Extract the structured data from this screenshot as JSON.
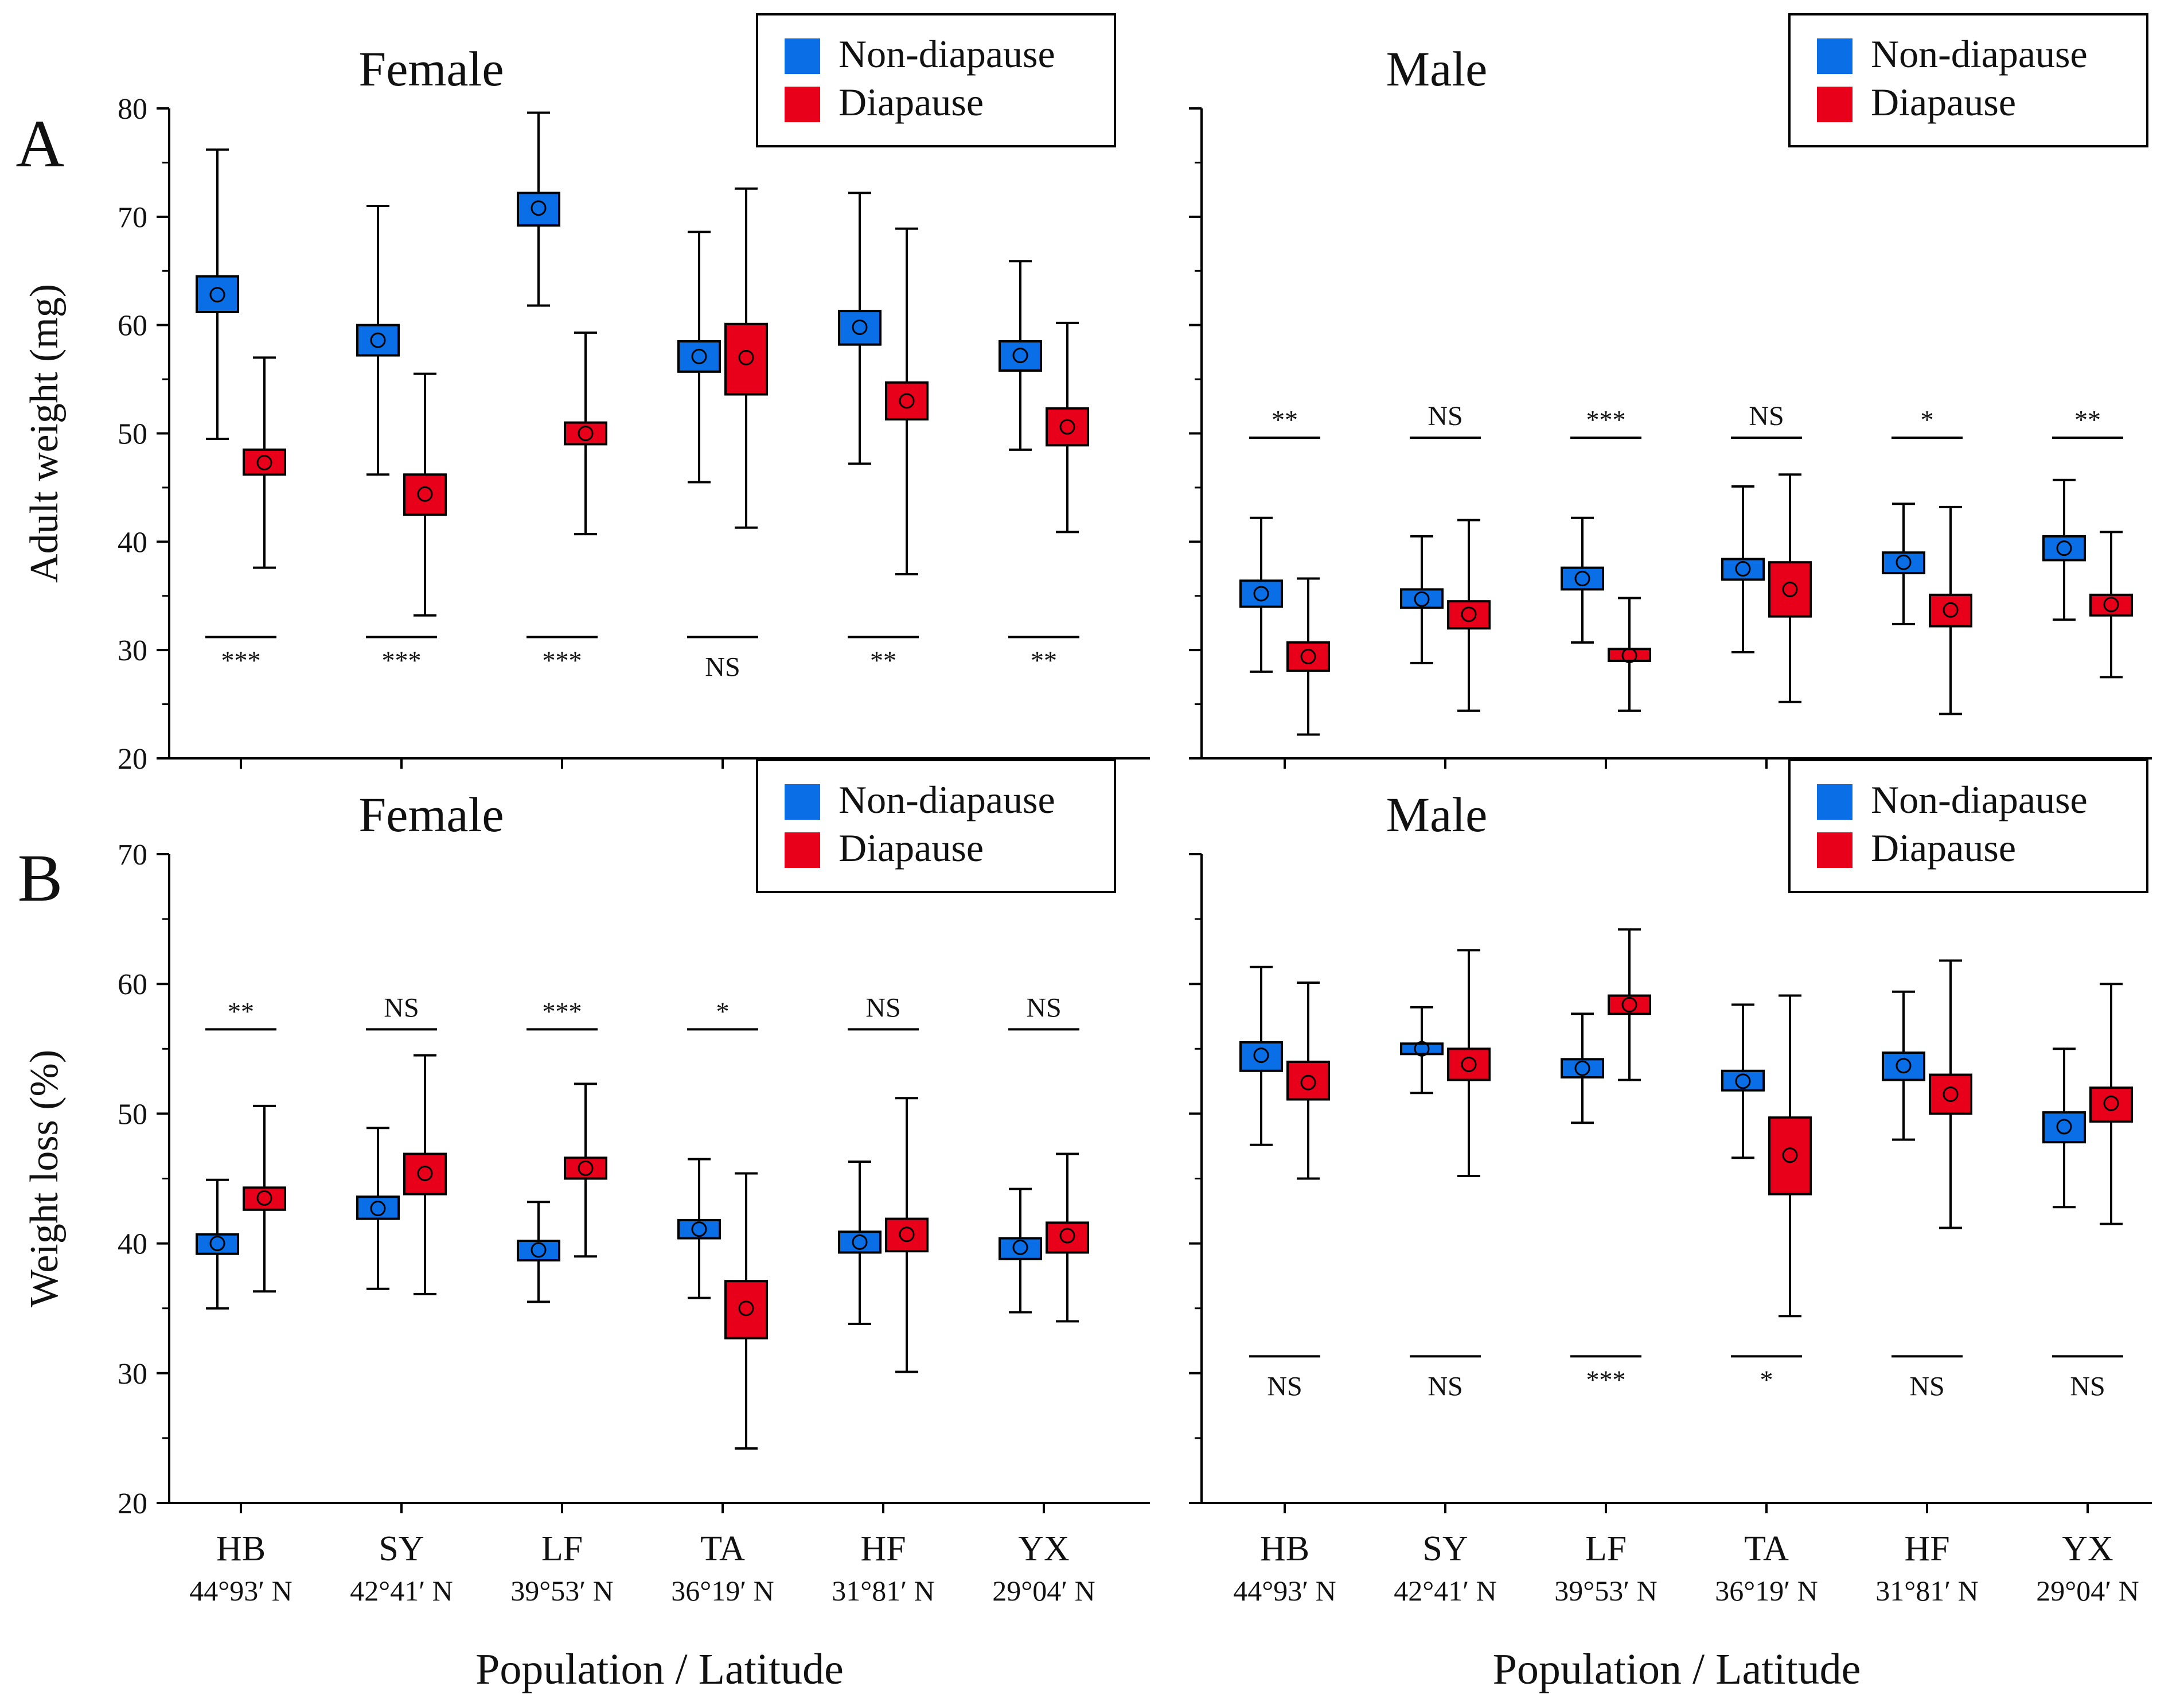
{
  "figure": {
    "panel_labels": [
      "A",
      "B"
    ],
    "xlabel": "Population / Latitude",
    "populations": [
      {
        "code": "HB",
        "lat": "44°93′ N"
      },
      {
        "code": "SY",
        "lat": "42°41′ N"
      },
      {
        "code": "LF",
        "lat": "39°53′ N"
      },
      {
        "code": "TA",
        "lat": "36°19′ N"
      },
      {
        "code": "HF",
        "lat": "31°81′ N"
      },
      {
        "code": "YX",
        "lat": "29°04′ N"
      }
    ],
    "legend": [
      {
        "name": "Non-diapause",
        "color": "#0a6ee6"
      },
      {
        "name": "Diapause",
        "color": "#e8001b"
      }
    ],
    "rows": [
      {
        "ylabel": "Adult weight (mg)",
        "ylim": [
          20,
          80
        ],
        "yticks": [
          20,
          30,
          40,
          50,
          60,
          70,
          80
        ]
      },
      {
        "ylabel": "Weight loss (%)",
        "ylim": [
          20,
          70
        ],
        "yticks": [
          20,
          30,
          40,
          50,
          60,
          70
        ]
      }
    ]
  },
  "chart_data": [
    {
      "type": "box",
      "panel": "A",
      "title": "Female",
      "ylabel": "Adult weight (mg)",
      "ylim": [
        20,
        80
      ],
      "categories": [
        "HB",
        "SY",
        "LF",
        "TA",
        "HF",
        "YX"
      ],
      "sig_position": "below",
      "sig_y": 31.2,
      "significance": [
        "***",
        "***",
        "***",
        "NS",
        "**",
        "**"
      ],
      "series": [
        {
          "name": "Non-diapause",
          "mean": [
            62.8,
            58.6,
            70.8,
            57.1,
            59.8,
            57.2
          ],
          "box_low": [
            61.2,
            57.2,
            69.2,
            55.7,
            58.2,
            55.8
          ],
          "box_high": [
            64.5,
            60.0,
            72.2,
            58.5,
            61.3,
            58.5
          ],
          "whisker_low": [
            49.5,
            46.2,
            61.8,
            45.5,
            47.2,
            48.5
          ],
          "whisker_high": [
            76.2,
            71.0,
            79.6,
            68.6,
            72.2,
            65.9
          ]
        },
        {
          "name": "Diapause",
          "mean": [
            47.3,
            44.4,
            50.0,
            57.0,
            53.0,
            50.6
          ],
          "box_low": [
            46.2,
            42.5,
            49.0,
            53.6,
            51.3,
            48.9
          ],
          "box_high": [
            48.5,
            46.2,
            51.0,
            60.1,
            54.7,
            52.3
          ],
          "whisker_low": [
            37.6,
            33.2,
            40.7,
            41.3,
            37.0,
            40.9
          ],
          "whisker_high": [
            57.0,
            55.5,
            59.3,
            72.6,
            68.9,
            60.2
          ]
        }
      ]
    },
    {
      "type": "box",
      "panel": "A",
      "title": "Male",
      "ylabel": "Adult weight (mg)",
      "ylim": [
        20,
        80
      ],
      "categories": [
        "HB",
        "SY",
        "LF",
        "TA",
        "HF",
        "YX"
      ],
      "sig_position": "above",
      "sig_y": 49.6,
      "significance": [
        "**",
        "NS",
        "***",
        "NS",
        "*",
        "**"
      ],
      "series": [
        {
          "name": "Non-diapause",
          "mean": [
            35.2,
            34.7,
            36.6,
            37.5,
            38.1,
            39.4
          ],
          "box_low": [
            34.0,
            33.9,
            35.6,
            36.5,
            37.1,
            38.3
          ],
          "box_high": [
            36.4,
            35.6,
            37.6,
            38.4,
            39.0,
            40.5
          ],
          "whisker_low": [
            28.0,
            28.8,
            30.7,
            29.8,
            32.4,
            32.8
          ],
          "whisker_high": [
            42.2,
            40.5,
            42.2,
            45.1,
            43.5,
            45.7
          ]
        },
        {
          "name": "Diapause",
          "mean": [
            29.4,
            33.3,
            29.5,
            35.6,
            33.7,
            34.2
          ],
          "box_low": [
            28.1,
            32.0,
            29.0,
            33.1,
            32.2,
            33.2
          ],
          "box_high": [
            30.7,
            34.5,
            30.1,
            38.1,
            35.1,
            35.1
          ],
          "whisker_low": [
            22.2,
            24.4,
            24.4,
            25.2,
            24.1,
            27.5
          ],
          "whisker_high": [
            36.6,
            42.0,
            34.8,
            46.2,
            43.2,
            40.9
          ]
        }
      ]
    },
    {
      "type": "box",
      "panel": "B",
      "title": "Female",
      "ylabel": "Weight loss (%)",
      "ylim": [
        20,
        70
      ],
      "categories": [
        "HB",
        "SY",
        "LF",
        "TA",
        "HF",
        "YX"
      ],
      "sig_position": "above",
      "sig_y": 56.5,
      "significance": [
        "**",
        "NS",
        "***",
        "*",
        "NS",
        "NS"
      ],
      "series": [
        {
          "name": "Non-diapause",
          "mean": [
            40.0,
            42.7,
            39.5,
            41.1,
            40.1,
            39.7
          ],
          "box_low": [
            39.2,
            41.9,
            38.7,
            40.4,
            39.3,
            38.8
          ],
          "box_high": [
            40.7,
            43.6,
            40.2,
            41.8,
            40.9,
            40.4
          ],
          "whisker_low": [
            35.0,
            36.5,
            35.5,
            35.8,
            33.8,
            34.7
          ],
          "whisker_high": [
            44.9,
            48.9,
            43.2,
            46.5,
            46.3,
            44.2
          ]
        },
        {
          "name": "Diapause",
          "mean": [
            43.5,
            45.4,
            45.8,
            35.0,
            40.7,
            40.6
          ],
          "box_low": [
            42.6,
            43.8,
            45.0,
            32.7,
            39.4,
            39.3
          ],
          "box_high": [
            44.3,
            46.9,
            46.6,
            37.1,
            41.9,
            41.6
          ],
          "whisker_low": [
            36.3,
            36.1,
            39.0,
            24.2,
            30.1,
            34.0
          ],
          "whisker_high": [
            50.6,
            54.5,
            52.3,
            45.4,
            51.2,
            46.9
          ]
        }
      ]
    },
    {
      "type": "box",
      "panel": "B",
      "title": "Male",
      "ylabel": "Weight loss (%)",
      "ylim": [
        20,
        70
      ],
      "categories": [
        "HB",
        "SY",
        "LF",
        "TA",
        "HF",
        "YX"
      ],
      "sig_position": "below",
      "sig_y": 31.3,
      "significance": [
        "NS",
        "NS",
        "***",
        "*",
        "NS",
        "NS"
      ],
      "series": [
        {
          "name": "Non-diapause",
          "mean": [
            54.5,
            55.0,
            53.5,
            52.5,
            53.7,
            49.0
          ],
          "box_low": [
            53.3,
            54.6,
            52.8,
            51.8,
            52.6,
            47.8
          ],
          "box_high": [
            55.5,
            55.4,
            54.2,
            53.3,
            54.7,
            50.1
          ],
          "whisker_low": [
            47.6,
            51.6,
            49.3,
            46.6,
            48.0,
            42.8
          ],
          "whisker_high": [
            61.3,
            58.2,
            57.7,
            58.4,
            59.4,
            55.0
          ]
        },
        {
          "name": "Diapause",
          "mean": [
            52.4,
            53.8,
            58.4,
            46.8,
            51.5,
            50.8
          ],
          "box_low": [
            51.1,
            52.6,
            57.7,
            43.8,
            50.0,
            49.4
          ],
          "box_high": [
            54.0,
            55.0,
            59.1,
            49.7,
            53.0,
            52.0
          ],
          "whisker_low": [
            45.0,
            45.2,
            52.6,
            34.4,
            41.2,
            41.5
          ],
          "whisker_high": [
            60.1,
            62.6,
            64.2,
            59.1,
            61.8,
            60.0
          ]
        }
      ]
    }
  ]
}
